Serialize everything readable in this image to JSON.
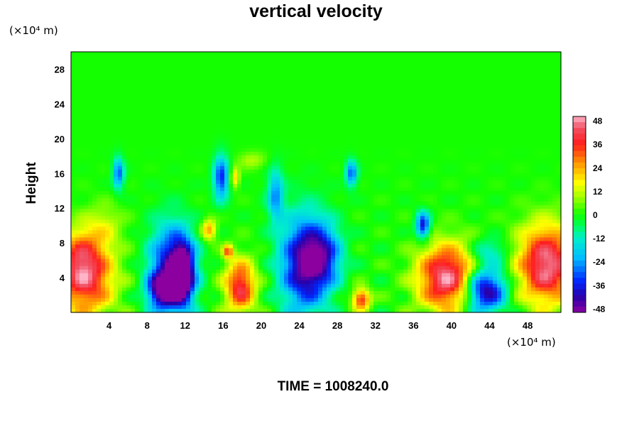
{
  "chart_data": {
    "type": "heatmap",
    "title": "vertical velocity",
    "ylabel": "Height",
    "y_unit": "(×10⁴ m)",
    "x_unit": "(×10⁴ m)",
    "xlim": [
      0,
      51.5
    ],
    "ylim": [
      0,
      30
    ],
    "x_ticks": [
      4,
      8,
      12,
      16,
      20,
      24,
      28,
      32,
      36,
      40,
      44,
      48
    ],
    "y_ticks": [
      4,
      8,
      12,
      16,
      20,
      24,
      28
    ],
    "colorbar": {
      "ticks": [
        48,
        36,
        24,
        12,
        0,
        -12,
        -24,
        -36,
        -48
      ],
      "range": [
        -50,
        50
      ]
    },
    "background_value": 0,
    "features": [
      {
        "x": 1.5,
        "y": 4.0,
        "rx": 3.0,
        "ry": 4.5,
        "value": 40
      },
      {
        "x": 1.0,
        "y": 6.5,
        "rx": 2.0,
        "ry": 3.0,
        "value": 15
      },
      {
        "x": 10.5,
        "y": 5.0,
        "rx": 2.2,
        "ry": 5.0,
        "value": -42
      },
      {
        "x": 11.8,
        "y": 4.5,
        "rx": 1.2,
        "ry": 3.5,
        "value": -50
      },
      {
        "x": 9.5,
        "y": 2.5,
        "rx": 1.5,
        "ry": 2.0,
        "value": -35
      },
      {
        "x": 17.8,
        "y": 3.0,
        "rx": 1.6,
        "ry": 3.0,
        "value": 40
      },
      {
        "x": 24.5,
        "y": 5.5,
        "rx": 2.5,
        "ry": 5.5,
        "value": -45
      },
      {
        "x": 26.5,
        "y": 6.5,
        "rx": 2.0,
        "ry": 3.5,
        "value": -28
      },
      {
        "x": 30.5,
        "y": 1.5,
        "rx": 0.9,
        "ry": 1.2,
        "value": 38
      },
      {
        "x": 39.5,
        "y": 4.0,
        "rx": 3.0,
        "ry": 3.8,
        "value": 48
      },
      {
        "x": 43.5,
        "y": 2.5,
        "rx": 2.2,
        "ry": 2.5,
        "value": -48
      },
      {
        "x": 50.0,
        "y": 5.5,
        "rx": 3.0,
        "ry": 4.5,
        "value": 48
      },
      {
        "x": 5.0,
        "y": 16.0,
        "rx": 0.6,
        "ry": 1.8,
        "value": -30
      },
      {
        "x": 15.8,
        "y": 15.5,
        "rx": 0.8,
        "ry": 2.5,
        "value": -35
      },
      {
        "x": 21.5,
        "y": 13.5,
        "rx": 0.9,
        "ry": 3.0,
        "value": -25
      },
      {
        "x": 29.5,
        "y": 16.0,
        "rx": 0.6,
        "ry": 1.5,
        "value": -30
      },
      {
        "x": 37.0,
        "y": 10.0,
        "rx": 0.7,
        "ry": 1.5,
        "value": -40
      },
      {
        "x": 14.5,
        "y": 9.5,
        "rx": 0.8,
        "ry": 1.2,
        "value": 25
      },
      {
        "x": 16.5,
        "y": 7.0,
        "rx": 0.5,
        "ry": 0.8,
        "value": 30
      },
      {
        "x": 17.2,
        "y": 15.5,
        "rx": 0.5,
        "ry": 1.2,
        "value": 20
      },
      {
        "x": 19.0,
        "y": 17.5,
        "rx": 1.5,
        "ry": 1.0,
        "value": 10
      },
      {
        "x": 44.0,
        "y": 7.0,
        "rx": 2.0,
        "ry": 1.5,
        "value": -15
      },
      {
        "x": 3.5,
        "y": 10.0,
        "rx": 2.0,
        "ry": 2.5,
        "value": 10
      }
    ]
  },
  "time_label": "TIME = 1008240.0"
}
